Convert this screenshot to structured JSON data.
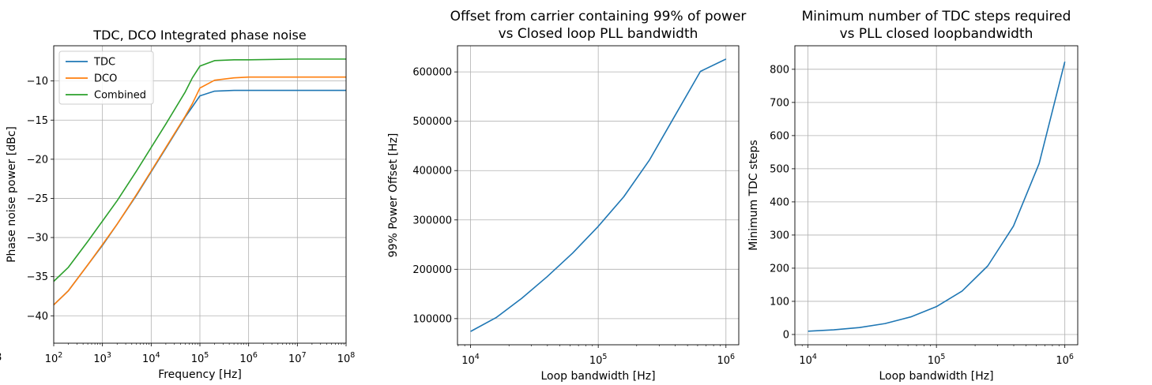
{
  "chart_data": [
    {
      "type": "line",
      "title": "TDC, DCO Integrated phase noise",
      "xlabel": "Frequency [Hz]",
      "ylabel": "Phase noise power [dBc]",
      "xscale": "log",
      "xlim": [
        100,
        100000000
      ],
      "ylim": [
        -43.5,
        -5.5
      ],
      "grid": true,
      "legend": "top-left",
      "xtick_labels": [
        "10^2",
        "10^3",
        "10^4",
        "10^5",
        "10^6",
        "10^7",
        "10^8"
      ],
      "ytick_labels": [
        "−10",
        "−15",
        "−20",
        "−25",
        "−30",
        "−35",
        "−40"
      ],
      "yticks": [
        -10,
        -15,
        -20,
        -25,
        -30,
        -35,
        -40
      ],
      "series": [
        {
          "name": "TDC",
          "color": "#1f77b4",
          "x": [
            100,
            200,
            500,
            1000,
            2000,
            5000,
            10000,
            20000,
            50000,
            70000,
            100000,
            200000,
            500000,
            1000000,
            10000000,
            100000000
          ],
          "y": [
            -38.6,
            -36.8,
            -33.5,
            -31.0,
            -28.3,
            -24.6,
            -21.6,
            -18.6,
            -14.6,
            -13.3,
            -11.9,
            -11.3,
            -11.2,
            -11.2,
            -11.2,
            -11.2
          ]
        },
        {
          "name": "DCO",
          "color": "#ff7f0e",
          "x": [
            100,
            200,
            500,
            1000,
            2000,
            5000,
            10000,
            20000,
            50000,
            70000,
            100000,
            200000,
            500000,
            1000000,
            10000000,
            100000000
          ],
          "y": [
            -38.6,
            -36.8,
            -33.5,
            -30.9,
            -28.3,
            -24.5,
            -21.5,
            -18.5,
            -14.5,
            -12.9,
            -10.9,
            -9.9,
            -9.6,
            -9.5,
            -9.5,
            -9.5
          ]
        },
        {
          "name": "Combined",
          "color": "#2ca02c",
          "x": [
            100,
            200,
            500,
            1000,
            2000,
            5000,
            10000,
            20000,
            50000,
            70000,
            100000,
            200000,
            500000,
            1000000,
            10000000,
            100000000
          ],
          "y": [
            -35.6,
            -33.8,
            -30.5,
            -27.9,
            -25.3,
            -21.5,
            -18.5,
            -15.5,
            -11.4,
            -9.6,
            -8.1,
            -7.4,
            -7.3,
            -7.3,
            -7.2,
            -7.2
          ]
        }
      ]
    },
    {
      "type": "line",
      "title": "Offset from carrier containing 99% of power\nvs Closed loop PLL bandwidth",
      "xlabel": "Loop bandwidth [Hz]",
      "ylabel": "99% Power Offset [Hz]",
      "xscale": "log",
      "xlim": [
        7900,
        1260000
      ],
      "ylim": [
        47000,
        653000
      ],
      "grid": true,
      "xtick_labels": [
        "10^4",
        "10^5",
        "10^6"
      ],
      "ytick_labels": [
        "100000",
        "200000",
        "300000",
        "400000",
        "500000",
        "600000"
      ],
      "yticks": [
        100000,
        200000,
        300000,
        400000,
        500000,
        600000
      ],
      "series": [
        {
          "color": "#1f77b4",
          "x": [
            10000,
            15850,
            25120,
            39810,
            63100,
            100000,
            158500,
            251200,
            398100,
            631000,
            1000000
          ],
          "y": [
            74000,
            102000,
            141000,
            185000,
            233000,
            287000,
            347000,
            421000,
            511000,
            601000,
            626000
          ]
        }
      ]
    },
    {
      "type": "line",
      "title": "Minimum number of TDC steps required\nvs PLL closed loopbandwidth",
      "xlabel": "Loop bandwidth [Hz]",
      "ylabel": "Minimum TDC steps",
      "xscale": "log",
      "xlim": [
        7900,
        1260000
      ],
      "ylim": [
        -31,
        871
      ],
      "grid": true,
      "xtick_labels": [
        "10^4",
        "10^5",
        "10^6"
      ],
      "ytick_labels": [
        "0",
        "100",
        "200",
        "300",
        "400",
        "500",
        "600",
        "700",
        "800"
      ],
      "yticks": [
        0,
        100,
        200,
        300,
        400,
        500,
        600,
        700,
        800
      ],
      "series": [
        {
          "color": "#1f77b4",
          "x": [
            10000,
            15850,
            25120,
            39810,
            63100,
            100000,
            158500,
            251200,
            398100,
            631000,
            1000000
          ],
          "y": [
            10,
            14,
            21,
            33,
            53,
            84,
            131,
            207,
            327,
            516,
            823
          ]
        }
      ]
    }
  ]
}
